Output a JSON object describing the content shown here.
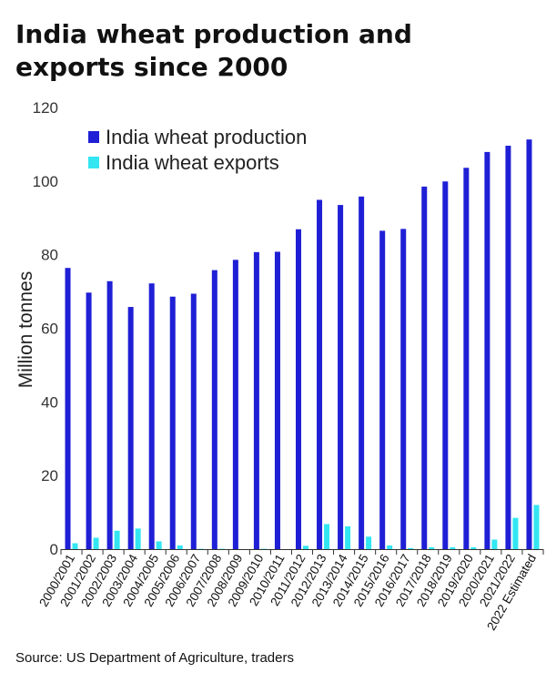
{
  "title": "India wheat production and exports since 2000",
  "source": "Source: US Department of Agriculture, traders",
  "colors": {
    "production": "#1f1fd6",
    "exports": "#33e6f2",
    "axis": "#333333"
  },
  "chart_data": {
    "type": "bar",
    "title": "India wheat production and exports since 2000",
    "xlabel": "",
    "ylabel": "Million tonnes",
    "ylim": [
      0,
      120
    ],
    "yticks": [
      0,
      20,
      40,
      60,
      80,
      100,
      120
    ],
    "grid": false,
    "legend_position": "top-left",
    "categories": [
      "2000/2001",
      "2001/2002",
      "2002/2003",
      "2003/2004",
      "2004/2005",
      "2005/2006",
      "2006/2007",
      "2007/2008",
      "2008/2009",
      "2009/2010",
      "2010/2011",
      "2011/2012",
      "2012/2013",
      "2013/2014",
      "2014/2015",
      "2015/2016",
      "2016/2017",
      "2017/2018",
      "2018/2019",
      "2019/2020",
      "2020/2021",
      "2021/2022",
      "2022 Estimated"
    ],
    "series": [
      {
        "name": "India wheat production",
        "values": [
          76.4,
          69.7,
          72.8,
          65.8,
          72.2,
          68.6,
          69.4,
          75.8,
          78.6,
          80.7,
          80.8,
          86.9,
          94.9,
          93.5,
          95.8,
          86.5,
          87.0,
          98.5,
          99.9,
          103.6,
          107.9,
          109.6,
          111.3
        ]
      },
      {
        "name": "India wheat exports",
        "values": [
          1.6,
          3.1,
          5.0,
          5.6,
          2.1,
          1.0,
          0.1,
          0.1,
          0.0,
          0.1,
          0.0,
          0.9,
          6.8,
          6.2,
          3.4,
          1.0,
          0.3,
          0.5,
          0.5,
          0.5,
          2.6,
          8.5,
          12.0
        ]
      }
    ]
  }
}
